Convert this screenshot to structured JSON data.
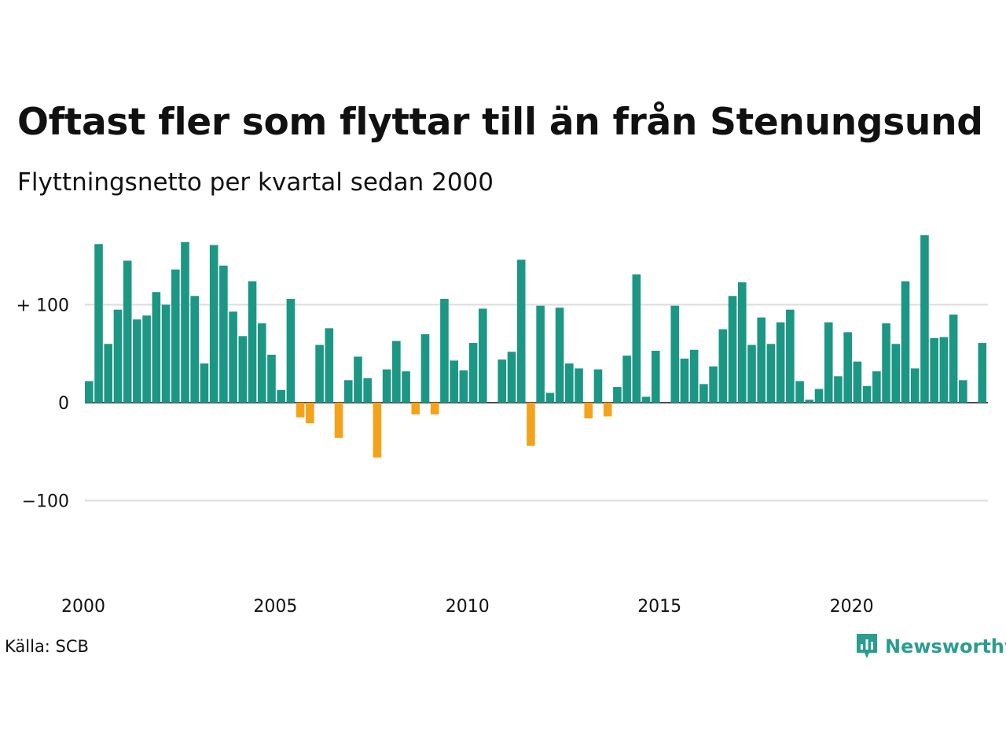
{
  "title": "Oftast fler som flyttar till än från Stenungsund",
  "subtitle": "Flyttningsnetto per kvartal sedan 2000",
  "source": "Källa: SCB",
  "brand": {
    "name": "Newsworthy"
  },
  "colors": {
    "positive": "#1b9784",
    "negative": "#f5a21b",
    "grid": "#dddddd",
    "brand": "#2a9d8f"
  },
  "chart_data": {
    "type": "bar",
    "x_start": "2000 Q1",
    "frequency": "quarterly",
    "values": [
      22,
      162,
      60,
      95,
      145,
      85,
      89,
      113,
      100,
      136,
      164,
      109,
      40,
      161,
      140,
      93,
      68,
      124,
      81,
      49,
      13,
      106,
      -15,
      -21,
      59,
      76,
      -36,
      23,
      47,
      25,
      -56,
      34,
      63,
      32,
      -12,
      70,
      -12,
      106,
      43,
      33,
      61,
      96,
      0,
      44,
      52,
      146,
      -44,
      99,
      10,
      97,
      40,
      35,
      -16,
      34,
      -14,
      16,
      48,
      131,
      6,
      53,
      0,
      99,
      45,
      54,
      19,
      37,
      75,
      109,
      123,
      59,
      87,
      60,
      82,
      95,
      22,
      3,
      14,
      82,
      27,
      72,
      42,
      17,
      32,
      81,
      60,
      124,
      35,
      171,
      66,
      67,
      90,
      23,
      0,
      61
    ],
    "y_ticks": [
      {
        "value": 100,
        "label": "+ 100"
      },
      {
        "value": 0,
        "label": "0"
      },
      {
        "value": -100,
        "label": "−100"
      }
    ],
    "x_ticks": [
      "2000",
      "2005",
      "2010",
      "2015",
      "2020"
    ],
    "ylim": [
      -170,
      180
    ],
    "grid": true
  }
}
